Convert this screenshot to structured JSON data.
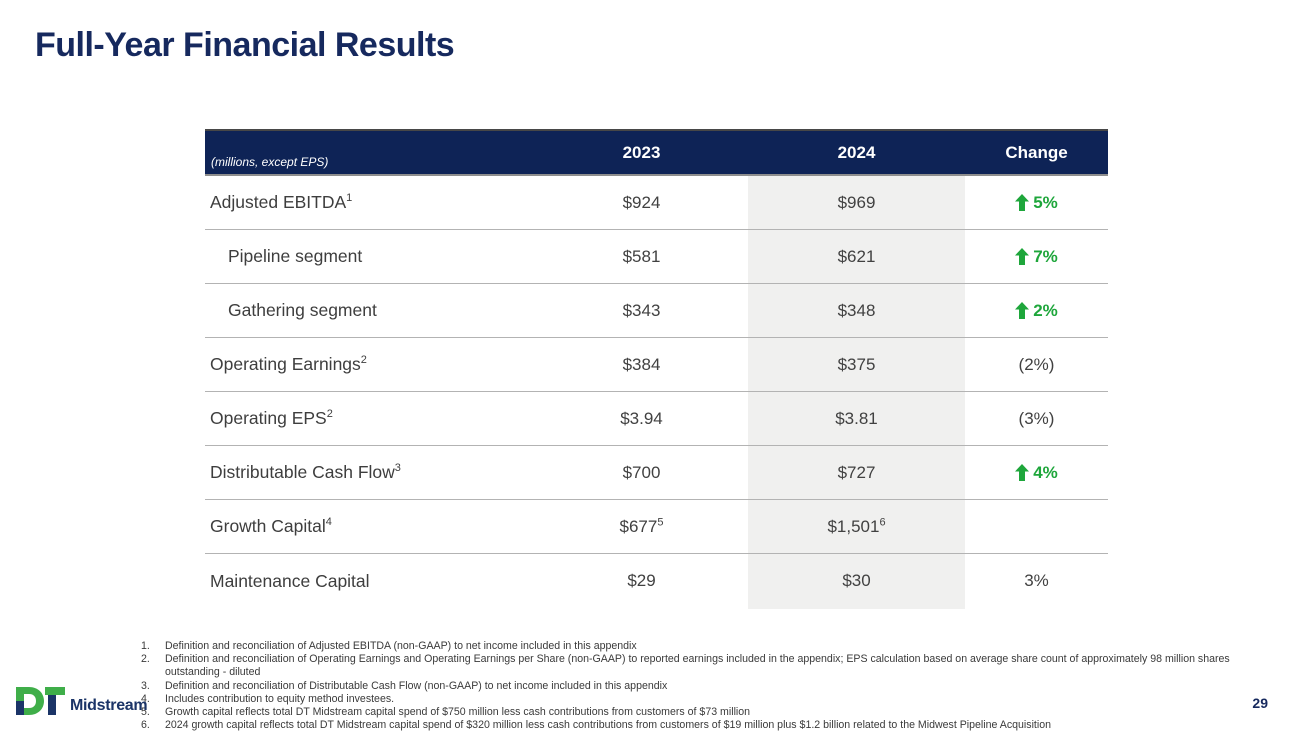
{
  "slide": {
    "title": "Full-Year Financial Results",
    "page_number": "29"
  },
  "logo": {
    "mark": "DT",
    "wordmark": "Midstream"
  },
  "colors": {
    "header_navy": "#0e2356",
    "title_navy": "#16295e",
    "positive_green": "#1ea63b",
    "shaded_column": "#f0f0ef"
  },
  "table": {
    "unit_note": "(millions, except EPS)",
    "columns": [
      "2023",
      "2024",
      "Change"
    ],
    "rows": [
      {
        "label": "Adjusted EBITDA",
        "label_sup": "1",
        "indent": false,
        "v2023": "$924",
        "v2023_sup": "",
        "v2024": "$969",
        "v2024_sup": "",
        "change": "5%",
        "direction": "up"
      },
      {
        "label": "Pipeline segment",
        "label_sup": "",
        "indent": true,
        "v2023": "$581",
        "v2023_sup": "",
        "v2024": "$621",
        "v2024_sup": "",
        "change": "7%",
        "direction": "up"
      },
      {
        "label": "Gathering segment",
        "label_sup": "",
        "indent": true,
        "v2023": "$343",
        "v2023_sup": "",
        "v2024": "$348",
        "v2024_sup": "",
        "change": "2%",
        "direction": "up"
      },
      {
        "label": "Operating Earnings",
        "label_sup": "2",
        "indent": false,
        "v2023": "$384",
        "v2023_sup": "",
        "v2024": "$375",
        "v2024_sup": "",
        "change": "(2%)",
        "direction": "none"
      },
      {
        "label": "Operating EPS",
        "label_sup": "2",
        "indent": false,
        "v2023": "$3.94",
        "v2023_sup": "",
        "v2024": "$3.81",
        "v2024_sup": "",
        "change": "(3%)",
        "direction": "none"
      },
      {
        "label": "Distributable Cash Flow",
        "label_sup": "3",
        "indent": false,
        "v2023": "$700",
        "v2023_sup": "",
        "v2024": "$727",
        "v2024_sup": "",
        "change": "4%",
        "direction": "up"
      },
      {
        "label": "Growth Capital",
        "label_sup": "4",
        "indent": false,
        "v2023": "$677",
        "v2023_sup": "5",
        "v2024": "$1,501",
        "v2024_sup": "6",
        "change": "",
        "direction": "none"
      },
      {
        "label": "Maintenance Capital",
        "label_sup": "",
        "indent": false,
        "v2023": "$29",
        "v2023_sup": "",
        "v2024": "$30",
        "v2024_sup": "",
        "change": "3%",
        "direction": "none"
      }
    ]
  },
  "footnotes": [
    {
      "num": "1.",
      "text": "Definition and reconciliation of Adjusted EBITDA (non-GAAP) to net income included in this appendix"
    },
    {
      "num": "2.",
      "text": "Definition and reconciliation of Operating Earnings and Operating Earnings per Share (non-GAAP) to reported earnings included in the appendix; EPS calculation based on average share count of approximately 98 million shares outstanding - diluted"
    },
    {
      "num": "3.",
      "text": "Definition and reconciliation of Distributable Cash Flow (non-GAAP) to net income included in this appendix"
    },
    {
      "num": "4.",
      "text": "Includes contribution to equity method investees."
    },
    {
      "num": "5.",
      "text": "Growth capital reflects total DT Midstream capital spend of $750 million less cash contributions from customers of $73 million"
    },
    {
      "num": "6.",
      "text": "2024 growth capital reflects total DT Midstream capital spend of $320 million less cash contributions from customers of $19 million plus $1.2 billion related to the Midwest Pipeline Acquisition"
    }
  ]
}
